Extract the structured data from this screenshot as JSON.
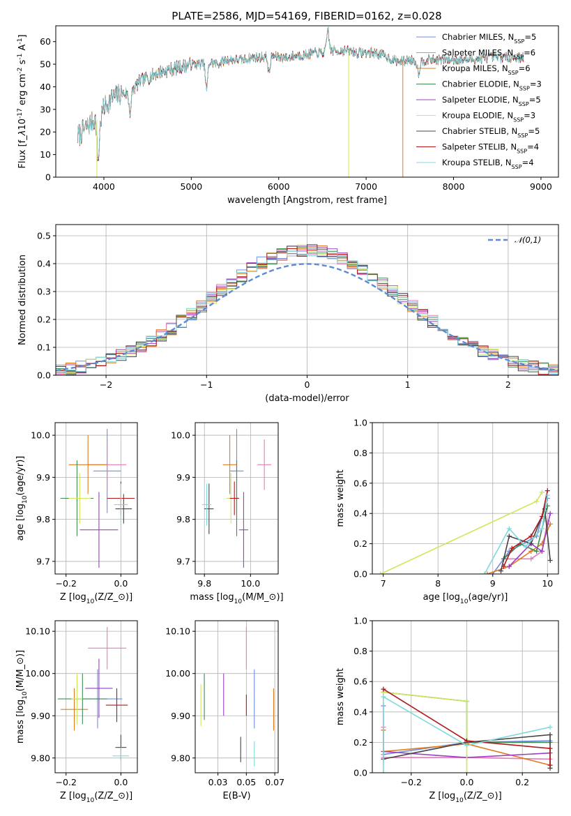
{
  "title": "PLATE=2586, MJD=54169, FIBERID=0162, z=0.028",
  "series_colors": [
    "#6d8ee0",
    "#e57cba",
    "#e07b1f",
    "#3f8a4f",
    "#9b3fbf",
    "#cfe65a",
    "#444444",
    "#b01818",
    "#7fd8dc"
  ],
  "chart_data": [
    {
      "type": "line",
      "id": "spectrum",
      "xlabel": "wavelength [Angstrom, rest frame]",
      "ylabel": "Flux [f$_\\lambda$10$^{-17}$ erg cm$^{-2}$ s$^{-1}$ A$^{-1}$]",
      "xlim": [
        3450,
        9200
      ],
      "ylim": [
        0,
        67
      ],
      "xticks": [
        4000,
        5000,
        6000,
        7000,
        8000,
        9000
      ],
      "yticks": [
        0,
        10,
        20,
        30,
        40,
        50,
        60
      ],
      "legend": "upper right",
      "series": [
        {
          "name": "Chabrier MILES, N",
          "sub": "SSP",
          "eq": "=5"
        },
        {
          "name": "Salpeter MILES, N",
          "sub": "SSP",
          "eq": "=6"
        },
        {
          "name": "Kroupa MILES, N",
          "sub": "SSP",
          "eq": "=6"
        },
        {
          "name": "Chabrier ELODIE, N",
          "sub": "SSP",
          "eq": "=3"
        },
        {
          "name": "Salpeter ELODIE, N",
          "sub": "SSP",
          "eq": "=5"
        },
        {
          "name": "Kroupa ELODIE, N",
          "sub": "SSP",
          "eq": "=3"
        },
        {
          "name": "Chabrier STELIB, N",
          "sub": "SSP",
          "eq": "=5"
        },
        {
          "name": "Salpeter STELIB, N",
          "sub": "SSP",
          "eq": "=4"
        },
        {
          "name": "Kroupa STELIB, N",
          "sub": "SSP",
          "eq": "=4"
        }
      ],
      "continuum": [
        [
          3700,
          18
        ],
        [
          3800,
          22
        ],
        [
          3900,
          26
        ],
        [
          3950,
          24
        ],
        [
          4000,
          31
        ],
        [
          4100,
          35
        ],
        [
          4200,
          37
        ],
        [
          4300,
          37
        ],
        [
          4400,
          42
        ],
        [
          4500,
          44
        ],
        [
          4600,
          46
        ],
        [
          4700,
          47
        ],
        [
          4800,
          48
        ],
        [
          4900,
          49
        ],
        [
          5000,
          50
        ],
        [
          5100,
          50
        ],
        [
          5200,
          51
        ],
        [
          5300,
          50
        ],
        [
          5400,
          52
        ],
        [
          5500,
          52
        ],
        [
          5600,
          52
        ],
        [
          5700,
          53
        ],
        [
          5800,
          53
        ],
        [
          5900,
          54
        ],
        [
          6000,
          53
        ],
        [
          6100,
          53
        ],
        [
          6200,
          54
        ],
        [
          6300,
          54
        ],
        [
          6400,
          55
        ],
        [
          6500,
          55
        ],
        [
          6600,
          56
        ],
        [
          6700,
          56
        ],
        [
          6800,
          56
        ],
        [
          6900,
          55
        ],
        [
          7000,
          55
        ],
        [
          7100,
          55
        ],
        [
          7200,
          54
        ],
        [
          7300,
          52
        ],
        [
          7400,
          51
        ],
        [
          7500,
          52
        ],
        [
          7600,
          51
        ],
        [
          7700,
          52
        ],
        [
          7800,
          52
        ],
        [
          7900,
          52
        ],
        [
          8000,
          52
        ],
        [
          8200,
          52
        ],
        [
          8400,
          53
        ],
        [
          8600,
          53
        ],
        [
          8800,
          53
        ]
      ],
      "dips": [
        [
          3934,
          17
        ],
        [
          4300,
          8
        ],
        [
          5175,
          12
        ],
        [
          5890,
          8
        ],
        [
          6563,
          -10
        ],
        [
          7600,
          5
        ]
      ],
      "drops": [
        {
          "x": 3920,
          "series": 5
        },
        {
          "x": 6800,
          "series": 5
        },
        {
          "x": 7420,
          "series": 2
        }
      ]
    },
    {
      "type": "histogram",
      "id": "residuals",
      "xlabel": "(data-model)/error",
      "ylabel": "Normed distribution",
      "xlim": [
        -2.5,
        2.5
      ],
      "ylim": [
        0,
        0.54
      ],
      "xticks": [
        -2,
        -1,
        0,
        1,
        2
      ],
      "yticks": [
        0,
        0.1,
        0.2,
        0.3,
        0.4,
        0.5
      ],
      "bin_width": 0.1,
      "reference": {
        "name": "$\\mathcal{N}(0,1)$",
        "mu": 0,
        "sigma": 1
      },
      "legend": "upper right"
    },
    {
      "type": "scatter",
      "id": "age_vs_z",
      "xlabel": "Z [log$_{10}$(Z/Z$_\\odot$)]",
      "ylabel": "age  [log$_{10}$(age/yr)]",
      "xlim": [
        -0.24,
        0.06
      ],
      "ylim": [
        9.67,
        10.03
      ],
      "xticks": [
        -0.2,
        0.0
      ],
      "yticks": [
        9.7,
        9.8,
        9.9,
        10.0
      ],
      "points": [
        {
          "x": -0.05,
          "y": 9.915,
          "dx": 0.05,
          "dy": 0.1
        },
        {
          "x": -0.05,
          "y": 9.93,
          "dx": 0.07,
          "dy": 0.06
        },
        {
          "x": -0.12,
          "y": 9.93,
          "dx": 0.07,
          "dy": 0.07
        },
        {
          "x": -0.16,
          "y": 9.85,
          "dx": 0.06,
          "dy": 0.09
        },
        {
          "x": -0.08,
          "y": 9.775,
          "dx": 0.07,
          "dy": 0.09
        },
        {
          "x": -0.15,
          "y": 9.85,
          "dx": 0.04,
          "dy": 0.06
        },
        {
          "x": 0.01,
          "y": 9.825,
          "dx": 0.03,
          "dy": 0.035
        },
        {
          "x": 0.0,
          "y": 9.85,
          "dx": 0.05,
          "dy": 0.04
        },
        {
          "x": 0.0,
          "y": 9.835,
          "dx": 0.025,
          "dy": 0.05
        }
      ]
    },
    {
      "type": "scatter",
      "id": "age_vs_mass",
      "xlabel": "mass [log$_{10}$(M/M$_\\odot$)]",
      "ylabel": "",
      "xlim": [
        9.76,
        10.12
      ],
      "ylim": [
        9.67,
        10.03
      ],
      "xticks": [
        9.8,
        10.0
      ],
      "yticks": [
        9.7,
        9.8,
        9.9,
        10.0
      ],
      "points": [
        {
          "x": 9.94,
          "y": 9.915,
          "dx": 0.03,
          "dy": 0.1
        },
        {
          "x": 10.06,
          "y": 9.93,
          "dx": 0.03,
          "dy": 0.06
        },
        {
          "x": 9.91,
          "y": 9.93,
          "dx": 0.03,
          "dy": 0.07
        },
        {
          "x": 9.94,
          "y": 9.85,
          "dx": 0.01,
          "dy": 0.09
        },
        {
          "x": 9.97,
          "y": 9.775,
          "dx": 0.02,
          "dy": 0.09
        },
        {
          "x": 9.915,
          "y": 9.85,
          "dx": 0.02,
          "dy": 0.06
        },
        {
          "x": 9.82,
          "y": 9.825,
          "dx": 0.02,
          "dy": 0.06
        },
        {
          "x": 9.93,
          "y": 9.85,
          "dx": 0.02,
          "dy": 0.04
        },
        {
          "x": 9.81,
          "y": 9.835,
          "dx": 0.02,
          "dy": 0.05
        }
      ]
    },
    {
      "type": "line",
      "id": "weight_vs_age",
      "xlabel": "age  [log$_{10}$(age/yr)]",
      "ylabel": "mass weight",
      "xlim": [
        6.8,
        10.2
      ],
      "ylim": [
        0,
        1.0
      ],
      "xticks": [
        7,
        8,
        9,
        10
      ],
      "yticks": [
        0,
        0.2,
        0.4,
        0.6,
        0.8,
        1.0
      ],
      "series": [
        [
          [
            9.0,
            0.0
          ],
          [
            9.3,
            0.15
          ],
          [
            9.8,
            0.25
          ],
          [
            10.0,
            0.5
          ]
        ],
        [
          [
            9.2,
            0.1
          ],
          [
            9.7,
            0.1
          ],
          [
            9.9,
            0.15
          ],
          [
            10.0,
            0.35
          ]
        ],
        [
          [
            8.9,
            0.0
          ],
          [
            9.3,
            0.05
          ],
          [
            9.7,
            0.15
          ],
          [
            9.9,
            0.2
          ],
          [
            10.05,
            0.33
          ]
        ],
        [
          [
            9.2,
            0.1
          ],
          [
            9.5,
            0.2
          ],
          [
            9.8,
            0.15
          ],
          [
            10.0,
            0.45
          ]
        ],
        [
          [
            9.3,
            0.05
          ],
          [
            9.7,
            0.2
          ],
          [
            9.9,
            0.15
          ],
          [
            10.05,
            0.4
          ]
        ],
        [
          [
            6.95,
            0.0
          ],
          [
            9.8,
            0.48
          ],
          [
            9.9,
            0.54
          ]
        ],
        [
          [
            9.15,
            0.02
          ],
          [
            9.3,
            0.25
          ],
          [
            9.7,
            0.2
          ],
          [
            9.95,
            0.43
          ],
          [
            10.05,
            0.09
          ]
        ],
        [
          [
            9.2,
            0.05
          ],
          [
            9.35,
            0.17
          ],
          [
            9.7,
            0.25
          ],
          [
            9.9,
            0.38
          ],
          [
            10.0,
            0.55
          ]
        ],
        [
          [
            8.85,
            0.0
          ],
          [
            9.3,
            0.3
          ],
          [
            9.6,
            0.18
          ],
          [
            9.9,
            0.3
          ],
          [
            10.0,
            0.52
          ]
        ]
      ]
    },
    {
      "type": "scatter",
      "id": "mass_vs_z",
      "xlabel": "Z [log$_{10}$(Z/Z$_\\odot$)]",
      "ylabel": "mass [log$_{10}$(M/M$_\\odot$)]",
      "xlim": [
        -0.24,
        0.06
      ],
      "ylim": [
        9.765,
        10.125
      ],
      "xticks": [
        -0.2,
        0.0
      ],
      "yticks": [
        9.8,
        9.9,
        10.0,
        10.1
      ],
      "points": [
        {
          "x": -0.085,
          "y": 9.94,
          "dx": 0.09,
          "dy": 0.07
        },
        {
          "x": -0.05,
          "y": 10.06,
          "dx": 0.07,
          "dy": 0.05
        },
        {
          "x": -0.17,
          "y": 9.915,
          "dx": 0.05,
          "dy": 0.05
        },
        {
          "x": -0.14,
          "y": 9.94,
          "dx": 0.09,
          "dy": 0.06
        },
        {
          "x": -0.08,
          "y": 9.965,
          "dx": 0.05,
          "dy": 0.07
        },
        {
          "x": -0.16,
          "y": 9.94,
          "dx": 0.02,
          "dy": 0.06
        },
        {
          "x": 0.0,
          "y": 9.825,
          "dx": 0.02,
          "dy": 0.03
        },
        {
          "x": -0.015,
          "y": 9.925,
          "dx": 0.04,
          "dy": 0.04
        },
        {
          "x": 0.0,
          "y": 9.805,
          "dx": 0.03,
          "dy": 0.02
        }
      ]
    },
    {
      "type": "scatter",
      "id": "mass_vs_ebv",
      "xlabel": "E(B-V)",
      "ylabel": "",
      "xlim": [
        0.005,
        0.078
      ],
      "ylim": [
        9.765,
        10.125
      ],
      "xticks": [
        0.025,
        0.05,
        0.075
      ],
      "yticks": [
        9.8,
        9.9,
        10.0,
        10.1
      ],
      "points": [
        {
          "x": 0.057,
          "y": 9.94,
          "dx": 0,
          "dy": 0.07
        },
        {
          "x": 0.05,
          "y": 10.06,
          "dx": 0,
          "dy": 0.05
        },
        {
          "x": 0.074,
          "y": 9.915,
          "dx": 0,
          "dy": 0.05
        },
        {
          "x": 0.013,
          "y": 9.945,
          "dx": 0,
          "dy": 0.055
        },
        {
          "x": 0.03,
          "y": 9.95,
          "dx": 0,
          "dy": 0.05
        },
        {
          "x": 0.01,
          "y": 9.925,
          "dx": 0,
          "dy": 0.05
        },
        {
          "x": 0.045,
          "y": 9.82,
          "dx": 0,
          "dy": 0.03
        },
        {
          "x": 0.05,
          "y": 9.925,
          "dx": 0,
          "dy": 0.025
        },
        {
          "x": 0.057,
          "y": 9.81,
          "dx": 0,
          "dy": 0.03
        }
      ]
    },
    {
      "type": "line",
      "id": "weight_vs_z",
      "xlabel": "Z [log$_{10}$(Z/Z$_\\odot$)]",
      "ylabel": "mass weight",
      "xlim": [
        -0.34,
        0.33
      ],
      "ylim": [
        0,
        1.0
      ],
      "xticks": [
        -0.2,
        0.0,
        0.2
      ],
      "yticks": [
        0,
        0.2,
        0.4,
        0.6,
        0.8,
        1.0
      ],
      "series": [
        [
          [
            -0.3,
            0.44
          ],
          [
            -0.3,
            0.12
          ],
          [
            0.0,
            0.2
          ],
          [
            0.3,
            0.21
          ]
        ],
        [
          [
            -0.3,
            0.3
          ],
          [
            -0.3,
            0.1
          ],
          [
            0.0,
            0.1
          ],
          [
            0.3,
            0.09
          ]
        ],
        [
          [
            -0.3,
            0.28
          ],
          [
            -0.3,
            0.14
          ],
          [
            0.0,
            0.19
          ],
          [
            0.3,
            0.05
          ]
        ],
        [
          [
            -0.3,
            0.53
          ],
          [
            0.0,
            0.47
          ],
          [
            0.0,
            0.2
          ],
          [
            0.3,
            0.2
          ]
        ],
        [
          [
            -0.3,
            0.14
          ],
          [
            0.0,
            0.1
          ],
          [
            0.3,
            0.13
          ]
        ],
        [
          [
            -0.3,
            0.53
          ],
          [
            0.0,
            0.47
          ],
          [
            0.0,
            0.0
          ]
        ],
        [
          [
            -0.3,
            0.09
          ],
          [
            0.0,
            0.2
          ],
          [
            0.3,
            0.25
          ],
          [
            0.3,
            0.03
          ]
        ],
        [
          [
            -0.3,
            0.55
          ],
          [
            0.0,
            0.21
          ],
          [
            0.3,
            0.16
          ],
          [
            0.3,
            0.05
          ]
        ],
        [
          [
            -0.3,
            0.0
          ],
          [
            -0.3,
            0.5
          ],
          [
            0.0,
            0.18
          ],
          [
            0.3,
            0.3
          ]
        ]
      ]
    }
  ]
}
